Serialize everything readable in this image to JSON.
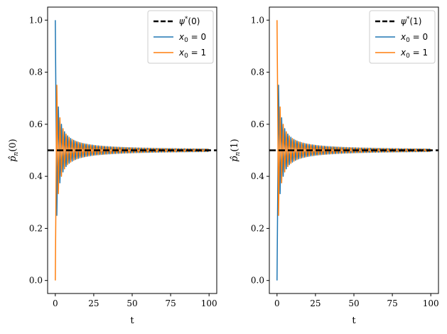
{
  "chart_data": [
    {
      "type": "line",
      "xlabel": "t",
      "ylabel": "p̂n(0)",
      "ylabel_main": "p̂",
      "ylabel_sub": "n",
      "ylabel_arg": "(0)",
      "xlim": [
        -5,
        105
      ],
      "ylim": [
        -0.05,
        1.05
      ],
      "xticks": [
        0,
        25,
        50,
        75,
        100
      ],
      "xtick_labels": [
        "0",
        "25",
        "50",
        "75",
        "100"
      ],
      "yticks": [
        0.0,
        0.2,
        0.4,
        0.6,
        0.8,
        1.0
      ],
      "ytick_labels": [
        "0.0",
        "0.2",
        "0.4",
        "0.6",
        "0.8",
        "1.0"
      ],
      "legend_position": "top-right",
      "reference_line": {
        "name": "ψ*(0)",
        "label_main": "ψ",
        "label_sup": "*",
        "label_arg": "(0)",
        "value": 0.5,
        "color": "#000000",
        "style": "dashed"
      },
      "series": [
        {
          "name": "x0 = 0",
          "label_main": "x",
          "label_sub": "0",
          "label_rest": " = 0",
          "color": "#1f77b4",
          "start": 1.0,
          "limit": 0.5,
          "amplitude": 0.5,
          "steps": 100
        },
        {
          "name": "x0 = 1",
          "label_main": "x",
          "label_sub": "0",
          "label_rest": " = 1",
          "color": "#ff7f0e",
          "start": 0.0,
          "limit": 0.5,
          "amplitude": -0.5,
          "steps": 100
        }
      ]
    },
    {
      "type": "line",
      "xlabel": "t",
      "ylabel": "p̂n(1)",
      "ylabel_main": "p̂",
      "ylabel_sub": "n",
      "ylabel_arg": "(1)",
      "xlim": [
        -5,
        105
      ],
      "ylim": [
        -0.05,
        1.05
      ],
      "xticks": [
        0,
        25,
        50,
        75,
        100
      ],
      "xtick_labels": [
        "0",
        "25",
        "50",
        "75",
        "100"
      ],
      "yticks": [
        0.0,
        0.2,
        0.4,
        0.6,
        0.8,
        1.0
      ],
      "ytick_labels": [
        "0.0",
        "0.2",
        "0.4",
        "0.6",
        "0.8",
        "1.0"
      ],
      "legend_position": "top-right",
      "reference_line": {
        "name": "ψ*(1)",
        "label_main": "ψ",
        "label_sup": "*",
        "label_arg": "(1)",
        "value": 0.5,
        "color": "#000000",
        "style": "dashed"
      },
      "series": [
        {
          "name": "x0 = 0",
          "label_main": "x",
          "label_sub": "0",
          "label_rest": " = 0",
          "color": "#1f77b4",
          "start": 0.0,
          "limit": 0.5,
          "amplitude": -0.5,
          "steps": 100
        },
        {
          "name": "x0 = 1",
          "label_main": "x",
          "label_sub": "0",
          "label_rest": " = 1",
          "color": "#ff7f0e",
          "start": 1.0,
          "limit": 0.5,
          "amplitude": 0.5,
          "steps": 100
        }
      ]
    }
  ]
}
